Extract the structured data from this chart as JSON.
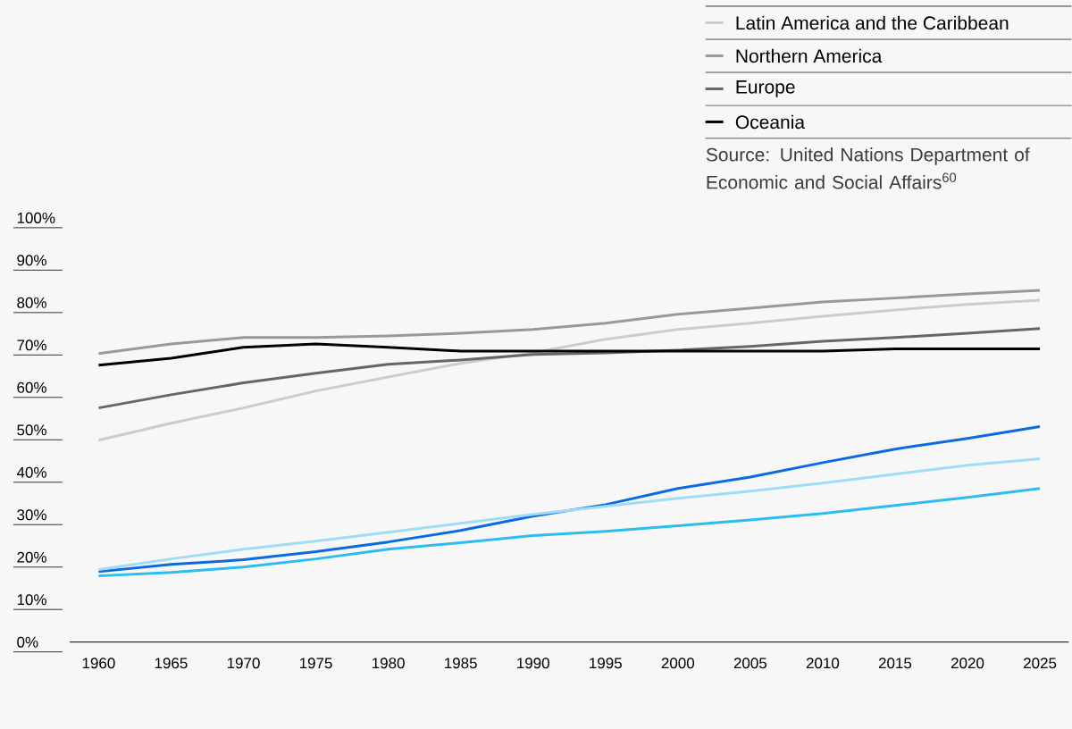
{
  "chart_data": {
    "type": "line",
    "legend": "top right",
    "line_style": "solid",
    "marker": "none",
    "grid": false,
    "annotations": [
      "Source: United Nations Department of Economic and Social Affairs$^{60}$"
    ],
    "x": [
      1960,
      1965,
      1970,
      1975,
      1980,
      1985,
      1990,
      1995,
      2000,
      2005,
      2010,
      2015,
      2020,
      2025
    ],
    "xlim": [
      1958,
      2027
    ],
    "xticks": [
      1960,
      1965,
      1970,
      1975,
      1980,
      1985,
      1990,
      1995,
      2000,
      2005,
      2010,
      2015,
      2020,
      2025
    ],
    "ylim": [
      0,
      100
    ],
    "yticks": [
      {
        "value": 0,
        "label": "0%"
      },
      {
        "value": 10,
        "label": "10%"
      },
      {
        "value": 20,
        "label": "20%"
      },
      {
        "value": 30,
        "label": "30%"
      },
      {
        "value": 40,
        "label": "40%"
      },
      {
        "value": 50,
        "label": "50%"
      },
      {
        "value": 60,
        "label": "60%"
      },
      {
        "value": 70,
        "label": "70%"
      },
      {
        "value": 80,
        "label": "80%"
      },
      {
        "value": 90,
        "label": "90%"
      },
      {
        "value": 100,
        "label": "100%"
      }
    ],
    "series": [
      {
        "name": "Latin America and the Caribbean",
        "color": "#cccccc",
        "values": [
          47.6,
          51.6,
          55.2,
          59.2,
          62.5,
          65.7,
          68.2,
          71.4,
          73.7,
          75.2,
          76.8,
          78.3,
          79.6,
          80.6
        ]
      },
      {
        "name": "Northern America",
        "color": "#999999",
        "values": [
          68.0,
          70.3,
          71.8,
          71.8,
          72.2,
          72.8,
          73.7,
          75.2,
          77.3,
          78.7,
          80.2,
          81.1,
          82.1,
          82.9
        ]
      },
      {
        "name": "Europe",
        "color": "#666666",
        "values": [
          55.2,
          58.3,
          61.1,
          63.4,
          65.5,
          66.5,
          67.8,
          68.2,
          68.8,
          69.7,
          70.9,
          71.8,
          72.8,
          73.9
        ]
      },
      {
        "name": "Oceania",
        "color": "#000000",
        "values": [
          65.3,
          66.9,
          69.5,
          70.3,
          69.5,
          68.6,
          68.6,
          68.6,
          68.6,
          68.6,
          68.6,
          69.1,
          69.1,
          69.1
        ]
      },
      {
        "color": "#0a6ae0",
        "values": [
          16.6,
          18.3,
          19.4,
          21.3,
          23.6,
          26.3,
          29.7,
          32.4,
          36.2,
          38.9,
          42.3,
          45.5,
          48.0,
          50.8
        ]
      },
      {
        "color": "#a0dcf8",
        "values": [
          17.1,
          19.6,
          21.9,
          23.8,
          25.9,
          28.0,
          30.1,
          32.0,
          33.9,
          35.6,
          37.5,
          39.6,
          41.7,
          43.2
        ]
      },
      {
        "color": "#2bbcf0",
        "values": [
          15.6,
          16.4,
          17.7,
          19.6,
          21.9,
          23.4,
          25.1,
          26.1,
          27.4,
          28.8,
          30.3,
          32.2,
          34.1,
          36.2
        ]
      }
    ]
  }
}
